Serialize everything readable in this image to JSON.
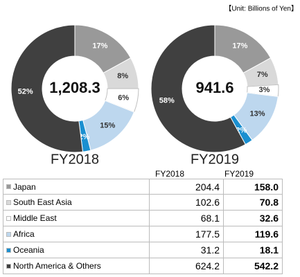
{
  "unit_note": "【Unit: Billions of Yen】",
  "chart_data": [
    {
      "type": "pie",
      "donut": true,
      "label": "FY2018",
      "center_text": "1,208.3",
      "values": [
        17,
        8,
        6,
        15,
        2,
        52
      ],
      "value_labels": [
        "17%",
        "8%",
        "6%",
        "15%",
        "2%",
        "52%"
      ],
      "colors": [
        "#999999",
        "#d9d9d9",
        "#ffffff",
        "#bdd7ee",
        "#1a8fd0",
        "#404040"
      ]
    },
    {
      "type": "pie",
      "donut": true,
      "label": "FY2019",
      "center_text": "941.6",
      "values": [
        17,
        7,
        3,
        13,
        2,
        58
      ],
      "value_labels": [
        "17%",
        "7%",
        "3%",
        "13%",
        "2%",
        "58%"
      ],
      "colors": [
        "#999999",
        "#d9d9d9",
        "#ffffff",
        "#bdd7ee",
        "#1a8fd0",
        "#404040"
      ]
    }
  ],
  "table": {
    "header": [
      "FY2018",
      "FY2019"
    ],
    "rows": [
      [
        "Japan",
        "204.4",
        "158.0"
      ],
      [
        "South East Asia",
        "102.6",
        "70.8"
      ],
      [
        "Middle East",
        "68.1",
        "32.6"
      ],
      [
        "Africa",
        "177.5",
        "119.6"
      ],
      [
        "Oceania",
        "31.2",
        "18.1"
      ],
      [
        "North America & Others",
        "624.2",
        "542.2"
      ]
    ]
  }
}
